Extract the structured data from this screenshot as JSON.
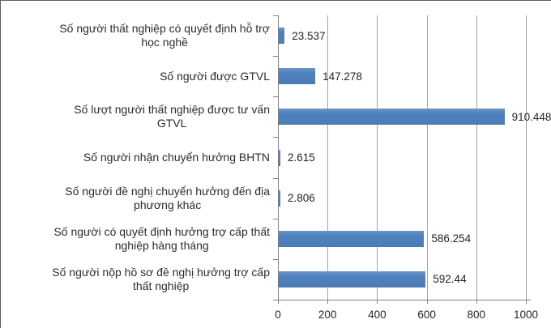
{
  "chart_data": {
    "type": "bar",
    "orientation": "horizontal",
    "title": "",
    "xlabel": "",
    "ylabel": "",
    "grid": true,
    "legend": false,
    "x_axis": {
      "min": 0,
      "max": 1000,
      "tick_labels": [
        "0",
        "200",
        "400",
        "600",
        "800",
        "1000"
      ],
      "tick_values": [
        0,
        200,
        400,
        600,
        800,
        1000
      ]
    },
    "categories": [
      "Số người thất nghiệp có quyết định hỗ trợ học nghề",
      "Số người được GTVL",
      "Số lượt người thất nghiệp được tư vấn GTVL",
      "Số người nhận chuyển hưởng BHTN",
      "Số người đề nghị chuyển hưởng đến địa phương khác",
      "Số người có quyết định hưởng trợ cấp thất nghiệp hàng tháng",
      "Số người nộp hồ sơ đề nghị hưởng trợ cấp thất nghiệp"
    ],
    "category_lines": [
      [
        "Số người thất nghiệp có quyết định hỗ trợ",
        "học nghề"
      ],
      [
        "Số người được GTVL"
      ],
      [
        "Số lượt người thất nghiệp được tư vấn",
        "GTVL"
      ],
      [
        "Số người nhận chuyển hưởng BHTN"
      ],
      [
        "Số người đề nghị chuyển hưởng đến địa",
        "phương khác"
      ],
      [
        "Số người có quyết định hưởng trợ cấp thất",
        "nghiệp hàng tháng"
      ],
      [
        "Số người nộp hồ sơ đề nghị hưởng trợ cấp",
        "thất nghiệp"
      ]
    ],
    "values": [
      23.537,
      147.278,
      910.448,
      2.615,
      2.806,
      586.254,
      592.44
    ],
    "value_labels": [
      "23.537",
      "147.278",
      "910.448",
      "2.615",
      "2.806",
      "586.254",
      "592.44"
    ],
    "colors": {
      "bar": "#4f81bd",
      "gridline": "#a3a3a3",
      "axis": "#7f7f7f",
      "text": "#2e2a33"
    }
  }
}
